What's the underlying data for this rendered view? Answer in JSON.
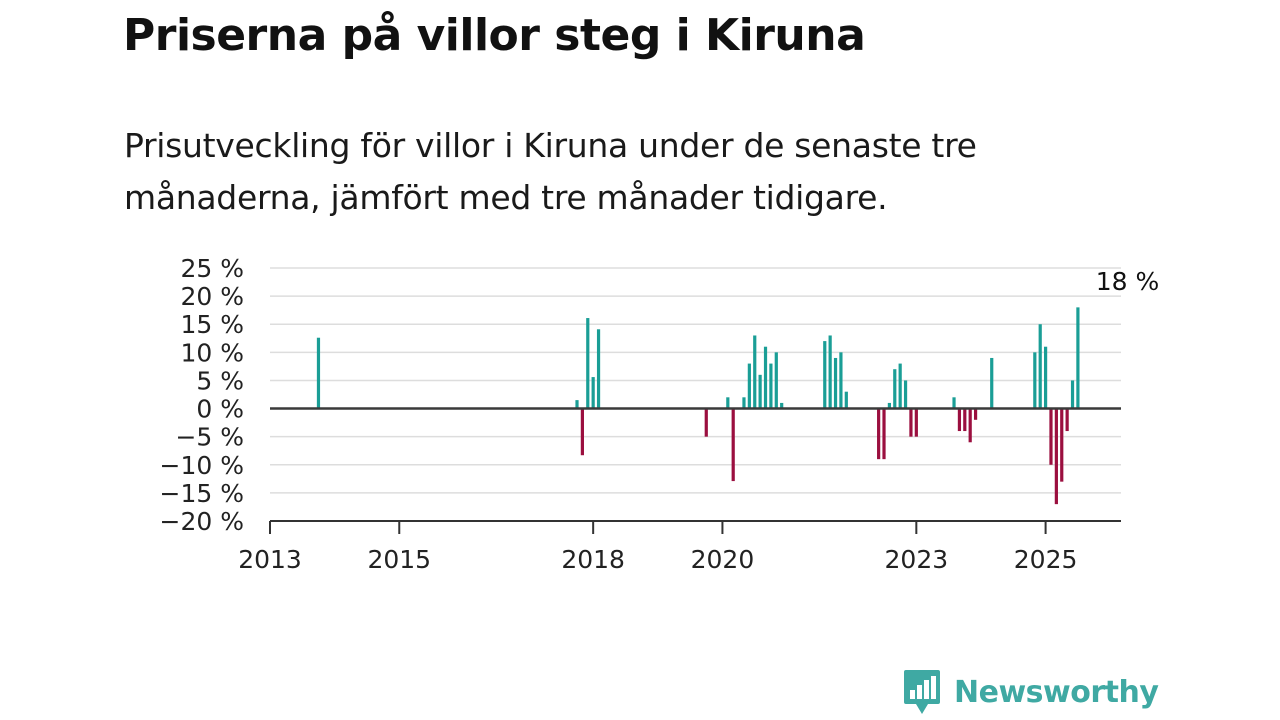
{
  "header": {
    "title": "Priserna på villor steg i Kiruna",
    "subtitle": "Prisutveckling för villor i Kiruna under de senaste tre månaderna, jämfört med tre månader tidigare."
  },
  "brand": {
    "name": "Newsworthy",
    "icon": "newsworthy-logo-icon",
    "color": "#3fa9a3"
  },
  "chart_data": {
    "type": "bar",
    "unit": "%",
    "ylim": [
      -20,
      25
    ],
    "y_ticks": [
      25,
      20,
      15,
      10,
      5,
      0,
      -5,
      -10,
      -15,
      -20
    ],
    "y_tick_labels": [
      "25 %",
      "20 %",
      "15 %",
      "10 %",
      "5 %",
      "0 %",
      "−5 %",
      "−10 %",
      "−15 %",
      "−20 %"
    ],
    "xlim": [
      "2013-01",
      "2026-03"
    ],
    "x_ticks": [
      "2013-01",
      "2015-01",
      "2018-01",
      "2020-01",
      "2023-01",
      "2025-01"
    ],
    "x_tick_labels": [
      "2013",
      "2015",
      "2018",
      "2020",
      "2023",
      "2025"
    ],
    "grid": true,
    "positive_color": "#1a9e96",
    "negative_color": "#9b0f3f",
    "annotation": {
      "date": "2025-11",
      "label": "18 %"
    },
    "bars": [
      {
        "date": "2013-10",
        "value": 12.6
      },
      {
        "date": "2017-10",
        "value": 1.5
      },
      {
        "date": "2017-11",
        "value": -8.3
      },
      {
        "date": "2017-12",
        "value": 16.1
      },
      {
        "date": "2018-01",
        "value": 5.6
      },
      {
        "date": "2018-02",
        "value": 14.1
      },
      {
        "date": "2019-10",
        "value": -5.0
      },
      {
        "date": "2020-02",
        "value": 2.0
      },
      {
        "date": "2020-03",
        "value": -12.9
      },
      {
        "date": "2020-05",
        "value": 2.0
      },
      {
        "date": "2020-06",
        "value": 8.0
      },
      {
        "date": "2020-07",
        "value": 13.0
      },
      {
        "date": "2020-08",
        "value": 6.0
      },
      {
        "date": "2020-09",
        "value": 11.0
      },
      {
        "date": "2020-10",
        "value": 8.0
      },
      {
        "date": "2020-11",
        "value": 10.0
      },
      {
        "date": "2020-12",
        "value": 1.0
      },
      {
        "date": "2021-08",
        "value": 12.0
      },
      {
        "date": "2021-09",
        "value": 13.0
      },
      {
        "date": "2021-10",
        "value": 9.0
      },
      {
        "date": "2021-11",
        "value": 10.0
      },
      {
        "date": "2021-12",
        "value": 3.0
      },
      {
        "date": "2022-06",
        "value": -9.0
      },
      {
        "date": "2022-07",
        "value": -9.0
      },
      {
        "date": "2022-08",
        "value": 1.0
      },
      {
        "date": "2022-09",
        "value": 7.0
      },
      {
        "date": "2022-10",
        "value": 8.0
      },
      {
        "date": "2022-11",
        "value": 5.0
      },
      {
        "date": "2022-12",
        "value": -5.0
      },
      {
        "date": "2023-01",
        "value": -5.0
      },
      {
        "date": "2023-08",
        "value": 2.0
      },
      {
        "date": "2023-09",
        "value": -4.0
      },
      {
        "date": "2023-10",
        "value": -4.0
      },
      {
        "date": "2023-11",
        "value": -6.0
      },
      {
        "date": "2023-12",
        "value": -2.0
      },
      {
        "date": "2024-03",
        "value": 9.0
      },
      {
        "date": "2024-11",
        "value": 10.0
      },
      {
        "date": "2024-12",
        "value": 15.0
      },
      {
        "date": "2025-01",
        "value": 11.0
      },
      {
        "date": "2025-02",
        "value": -10.0
      },
      {
        "date": "2025-03",
        "value": -17.0
      },
      {
        "date": "2025-04",
        "value": -13.0
      },
      {
        "date": "2025-05",
        "value": -4.0
      },
      {
        "date": "2025-06",
        "value": 5.0
      },
      {
        "date": "2025-07",
        "value": 18.0
      }
    ]
  }
}
